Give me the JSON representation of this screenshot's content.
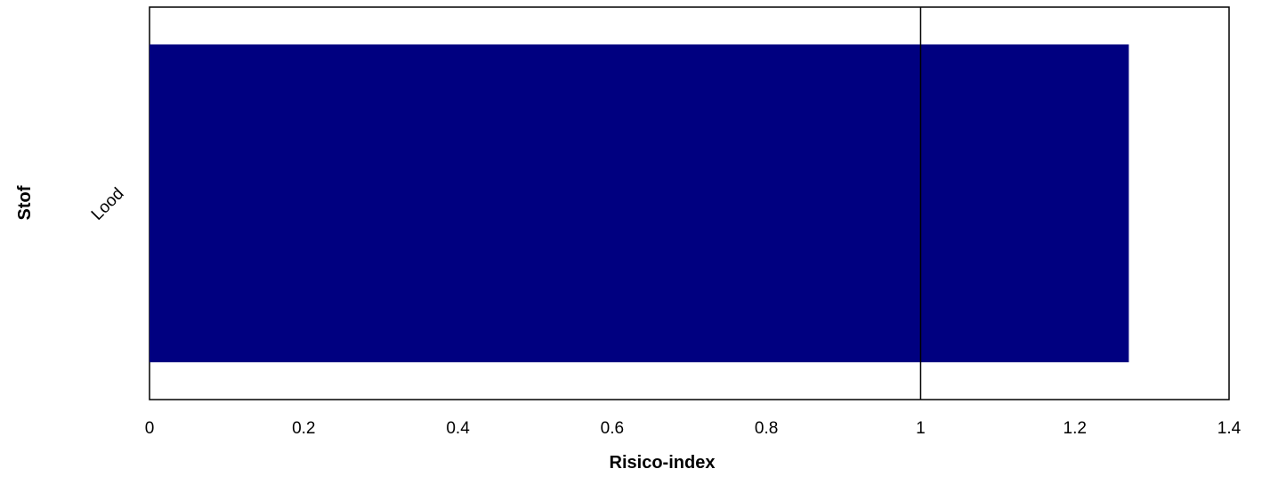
{
  "chart_data": {
    "type": "bar",
    "orientation": "horizontal",
    "categories": [
      "Lood"
    ],
    "values": [
      1.27
    ],
    "xlabel": "Risico-index",
    "ylabel": "Stof",
    "xlim": [
      0,
      1.4
    ],
    "xticks": [
      0,
      0.2,
      0.4,
      0.6,
      0.8,
      1,
      1.2,
      1.4
    ],
    "xtick_labels": [
      "0",
      "0.2",
      "0.4",
      "0.6",
      "0.8",
      "1",
      "1.2",
      "1.4"
    ],
    "reference_line": {
      "x": 1
    },
    "grid": false,
    "legend": "none",
    "colors": {
      "bar": "#000080",
      "axes": "#000000",
      "background": "#ffffff"
    }
  }
}
